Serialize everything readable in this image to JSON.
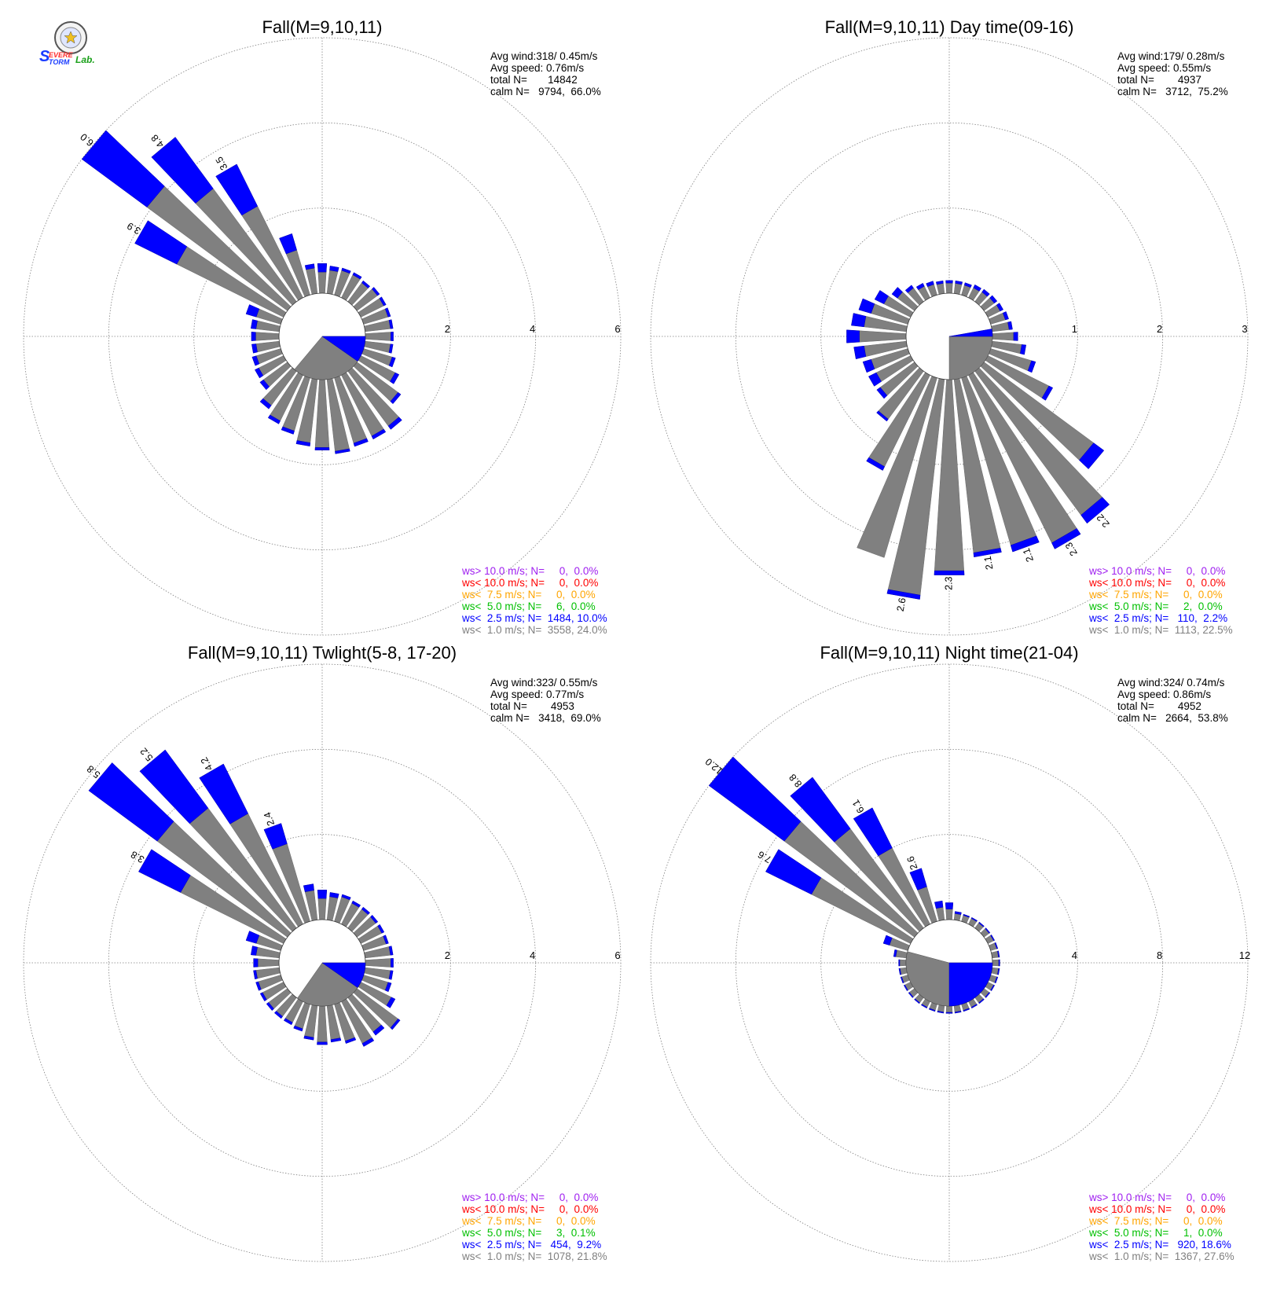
{
  "logo": {
    "text_s": "S",
    "text_evere": "EVERE",
    "text_torm": "TORM",
    "text_lab": "Lab.",
    "colors": {
      "s": "#1a3cff",
      "evere": "#ff2a2a",
      "torm": "#1a3cff",
      "lab": "#1aa01a"
    }
  },
  "colors": {
    "ws_gt10": "#a020f0",
    "ws_lt10": "#ff0000",
    "ws_lt7_5": "#ffa500",
    "ws_lt5": "#00c000",
    "ws_lt2_5": "#0000ff",
    "ws_lt1": "#808080",
    "grid": "#808080"
  },
  "chart_data": [
    {
      "type": "windrose",
      "title": "Fall(M=9,10,11)",
      "ring_labels": [
        "2",
        "4",
        "6"
      ],
      "rmax": 6,
      "info": [
        "Avg wind:318/ 0.45m/s",
        "Avg speed: 0.76m/s",
        "total N=       14842",
        "calm N=   9794,  66.0%"
      ],
      "legend": [
        {
          "key": "ws_gt10",
          "text": "ws> 10.0 m/s; N=     0,  0.0%"
        },
        {
          "key": "ws_lt10",
          "text": "ws< 10.0 m/s; N=     0,  0.0%"
        },
        {
          "key": "ws_lt7_5",
          "text": "ws<  7.5 m/s; N=     0,  0.0%"
        },
        {
          "key": "ws_lt5",
          "text": "ws<  5.0 m/s; N=     6,  0.0%"
        },
        {
          "key": "ws_lt2_5",
          "text": "ws<  2.5 m/s; N=  1484, 10.0%"
        },
        {
          "key": "ws_lt1",
          "text": "ws<  1.0 m/s; N=  3558, 24.0%"
        }
      ],
      "bins_count": 36,
      "calm_wedge": {
        "from_deg": 90,
        "to_deg": 220,
        "blue_from": 90,
        "blue_to": 125
      },
      "petals": [
        {
          "dir": 0,
          "gray": 0.5,
          "blue": 0.2
        },
        {
          "dir": 10,
          "gray": 0.55,
          "blue": 0.1
        },
        {
          "dir": 20,
          "gray": 0.6,
          "blue": 0.06
        },
        {
          "dir": 30,
          "gray": 0.6,
          "blue": 0.06
        },
        {
          "dir": 40,
          "gray": 0.55,
          "blue": 0.06
        },
        {
          "dir": 50,
          "gray": 0.6,
          "blue": 0.06
        },
        {
          "dir": 60,
          "gray": 0.6,
          "blue": 0.06
        },
        {
          "dir": 70,
          "gray": 0.6,
          "blue": 0.06
        },
        {
          "dir": 80,
          "gray": 0.6,
          "blue": 0.06
        },
        {
          "dir": 90,
          "gray": 0.6,
          "blue": 0.06
        },
        {
          "dir": 100,
          "gray": 0.6,
          "blue": 0.06
        },
        {
          "dir": 110,
          "gray": 0.7,
          "blue": 0.08
        },
        {
          "dir": 120,
          "gray": 0.9,
          "blue": 0.1
        },
        {
          "dir": 130,
          "gray": 1.2,
          "blue": 0.08
        },
        {
          "dir": 140,
          "gray": 1.6,
          "blue": 0.1
        },
        {
          "dir": 150,
          "gray": 1.6,
          "blue": 0.08
        },
        {
          "dir": 160,
          "gray": 1.6,
          "blue": 0.08
        },
        {
          "dir": 170,
          "gray": 1.7,
          "blue": 0.06
        },
        {
          "dir": 180,
          "gray": 1.6,
          "blue": 0.06
        },
        {
          "dir": 190,
          "gray": 1.5,
          "blue": 0.08
        },
        {
          "dir": 200,
          "gray": 1.3,
          "blue": 0.08
        },
        {
          "dir": 210,
          "gray": 1.2,
          "blue": 0.08
        },
        {
          "dir": 220,
          "gray": 1.0,
          "blue": 0.1
        },
        {
          "dir": 230,
          "gray": 0.7,
          "blue": 0.1
        },
        {
          "dir": 240,
          "gray": 0.65,
          "blue": 0.1
        },
        {
          "dir": 250,
          "gray": 0.6,
          "blue": 0.1
        },
        {
          "dir": 260,
          "gray": 0.55,
          "blue": 0.1
        },
        {
          "dir": 270,
          "gray": 0.55,
          "blue": 0.1
        },
        {
          "dir": 280,
          "gray": 0.55,
          "blue": 0.12
        },
        {
          "dir": 290,
          "gray": 0.6,
          "blue": 0.25
        },
        {
          "dir": 300,
          "gray": 2.8,
          "blue": 1.1,
          "label": "3.9"
        },
        {
          "dir": 310,
          "gray": 4.1,
          "blue": 1.9,
          "label": "6.0"
        },
        {
          "dir": 320,
          "gray": 3.3,
          "blue": 1.5,
          "label": "4.8"
        },
        {
          "dir": 330,
          "gray": 2.4,
          "blue": 1.1,
          "label": "3.5"
        },
        {
          "dir": 340,
          "gray": 1.1,
          "blue": 0.4
        },
        {
          "dir": 350,
          "gray": 0.6,
          "blue": 0.1
        }
      ]
    },
    {
      "type": "windrose",
      "title": "Fall(M=9,10,11) Day time(09-16)",
      "ring_labels": [
        "1",
        "2",
        "3"
      ],
      "rmax": 3,
      "info": [
        "Avg wind:179/ 0.28m/s",
        "Avg speed: 0.55m/s",
        "total N=        4937",
        "calm N=   3712,  75.2%"
      ],
      "legend": [
        {
          "key": "ws_gt10",
          "text": "ws> 10.0 m/s; N=     0,  0.0%"
        },
        {
          "key": "ws_lt10",
          "text": "ws< 10.0 m/s; N=     0,  0.0%"
        },
        {
          "key": "ws_lt7_5",
          "text": "ws<  7.5 m/s; N=     0,  0.0%"
        },
        {
          "key": "ws_lt5",
          "text": "ws<  5.0 m/s; N=     2,  0.0%"
        },
        {
          "key": "ws_lt2_5",
          "text": "ws<  2.5 m/s; N=   110,  2.2%"
        },
        {
          "key": "ws_lt1",
          "text": "ws<  1.0 m/s; N=  1113, 22.5%"
        }
      ],
      "bins_count": 36,
      "calm_wedge": {
        "from_deg": 90,
        "to_deg": 180,
        "blue_from": 80,
        "blue_to": 90
      },
      "petals": [
        {
          "dir": 0,
          "gray": 0.12,
          "blue": 0.03
        },
        {
          "dir": 10,
          "gray": 0.12,
          "blue": 0.03
        },
        {
          "dir": 20,
          "gray": 0.12,
          "blue": 0.03
        },
        {
          "dir": 30,
          "gray": 0.13,
          "blue": 0.04
        },
        {
          "dir": 40,
          "gray": 0.14,
          "blue": 0.04
        },
        {
          "dir": 50,
          "gray": 0.15,
          "blue": 0.04
        },
        {
          "dir": 60,
          "gray": 0.16,
          "blue": 0.04
        },
        {
          "dir": 70,
          "gray": 0.18,
          "blue": 0.04
        },
        {
          "dir": 80,
          "gray": 0.2,
          "blue": 0.04
        },
        {
          "dir": 90,
          "gray": 0.25,
          "blue": 0.05
        },
        {
          "dir": 100,
          "gray": 0.35,
          "blue": 0.05
        },
        {
          "dir": 110,
          "gray": 0.5,
          "blue": 0.05
        },
        {
          "dir": 120,
          "gray": 0.8,
          "blue": 0.05
        },
        {
          "dir": 130,
          "gray": 1.6,
          "blue": 0.15
        },
        {
          "dir": 140,
          "gray": 2.1,
          "blue": 0.12,
          "label": "2.2"
        },
        {
          "dir": 150,
          "gray": 2.2,
          "blue": 0.08,
          "label": "2.3"
        },
        {
          "dir": 160,
          "gray": 2.05,
          "blue": 0.08,
          "label": "2.1"
        },
        {
          "dir": 170,
          "gray": 2.05,
          "blue": 0.05,
          "label": "2.1"
        },
        {
          "dir": 180,
          "gray": 2.25,
          "blue": 0.05,
          "label": "2.3"
        },
        {
          "dir": 190,
          "gray": 2.55,
          "blue": 0.05,
          "label": "2.6"
        },
        {
          "dir": 200,
          "gray": 2.2,
          "blue": 0.0
        },
        {
          "dir": 210,
          "gray": 1.2,
          "blue": 0.05
        },
        {
          "dir": 220,
          "gray": 0.7,
          "blue": 0.03
        },
        {
          "dir": 230,
          "gray": 0.5,
          "blue": 0.05
        },
        {
          "dir": 240,
          "gray": 0.45,
          "blue": 0.1
        },
        {
          "dir": 250,
          "gray": 0.45,
          "blue": 0.1
        },
        {
          "dir": 260,
          "gray": 0.5,
          "blue": 0.12
        },
        {
          "dir": 270,
          "gray": 0.55,
          "blue": 0.15
        },
        {
          "dir": 280,
          "gray": 0.5,
          "blue": 0.15
        },
        {
          "dir": 290,
          "gray": 0.45,
          "blue": 0.15
        },
        {
          "dir": 300,
          "gray": 0.35,
          "blue": 0.12
        },
        {
          "dir": 310,
          "gray": 0.25,
          "blue": 0.08
        },
        {
          "dir": 320,
          "gray": 0.2,
          "blue": 0.04
        },
        {
          "dir": 330,
          "gray": 0.15,
          "blue": 0.04
        },
        {
          "dir": 340,
          "gray": 0.13,
          "blue": 0.04
        },
        {
          "dir": 350,
          "gray": 0.12,
          "blue": 0.03
        }
      ]
    },
    {
      "type": "windrose",
      "title": "Fall(M=9,10,11) Twlight(5-8, 17-20)",
      "ring_labels": [
        "2",
        "4",
        "6"
      ],
      "rmax": 6,
      "info": [
        "Avg wind:323/ 0.55m/s",
        "Avg speed: 0.77m/s",
        "total N=        4953",
        "calm N=   3418,  69.0%"
      ],
      "legend": [
        {
          "key": "ws_gt10",
          "text": "ws> 10.0 m/s; N=     0,  0.0%"
        },
        {
          "key": "ws_lt10",
          "text": "ws< 10.0 m/s; N=     0,  0.0%"
        },
        {
          "key": "ws_lt7_5",
          "text": "ws<  7.5 m/s; N=     0,  0.0%"
        },
        {
          "key": "ws_lt5",
          "text": "ws<  5.0 m/s; N=     3,  0.1%"
        },
        {
          "key": "ws_lt2_5",
          "text": "ws<  2.5 m/s; N=   454,  9.2%"
        },
        {
          "key": "ws_lt1",
          "text": "ws<  1.0 m/s; N=  1078, 21.8%"
        }
      ],
      "bins_count": 36,
      "calm_wedge": {
        "from_deg": 90,
        "to_deg": 215,
        "blue_from": 90,
        "blue_to": 125
      },
      "petals": [
        {
          "dir": 0,
          "gray": 0.5,
          "blue": 0.2
        },
        {
          "dir": 10,
          "gray": 0.55,
          "blue": 0.1
        },
        {
          "dir": 20,
          "gray": 0.6,
          "blue": 0.06
        },
        {
          "dir": 30,
          "gray": 0.55,
          "blue": 0.06
        },
        {
          "dir": 40,
          "gray": 0.55,
          "blue": 0.06
        },
        {
          "dir": 50,
          "gray": 0.55,
          "blue": 0.06
        },
        {
          "dir": 60,
          "gray": 0.55,
          "blue": 0.06
        },
        {
          "dir": 70,
          "gray": 0.55,
          "blue": 0.06
        },
        {
          "dir": 80,
          "gray": 0.6,
          "blue": 0.06
        },
        {
          "dir": 90,
          "gray": 0.6,
          "blue": 0.06
        },
        {
          "dir": 100,
          "gray": 0.6,
          "blue": 0.06
        },
        {
          "dir": 110,
          "gray": 0.6,
          "blue": 0.08
        },
        {
          "dir": 120,
          "gray": 0.8,
          "blue": 0.1
        },
        {
          "dir": 130,
          "gray": 1.2,
          "blue": 0.06
        },
        {
          "dir": 140,
          "gray": 1.0,
          "blue": 0.1
        },
        {
          "dir": 150,
          "gray": 1.1,
          "blue": 0.08
        },
        {
          "dir": 160,
          "gray": 0.9,
          "blue": 0.06
        },
        {
          "dir": 170,
          "gray": 0.8,
          "blue": 0.06
        },
        {
          "dir": 180,
          "gray": 0.85,
          "blue": 0.06
        },
        {
          "dir": 190,
          "gray": 0.75,
          "blue": 0.06
        },
        {
          "dir": 200,
          "gray": 0.6,
          "blue": 0.06
        },
        {
          "dir": 210,
          "gray": 0.55,
          "blue": 0.06
        },
        {
          "dir": 220,
          "gray": 0.55,
          "blue": 0.06
        },
        {
          "dir": 230,
          "gray": 0.55,
          "blue": 0.06
        },
        {
          "dir": 240,
          "gray": 0.55,
          "blue": 0.06
        },
        {
          "dir": 250,
          "gray": 0.55,
          "blue": 0.06
        },
        {
          "dir": 260,
          "gray": 0.55,
          "blue": 0.06
        },
        {
          "dir": 270,
          "gray": 0.5,
          "blue": 0.1
        },
        {
          "dir": 280,
          "gray": 0.55,
          "blue": 0.12
        },
        {
          "dir": 290,
          "gray": 0.6,
          "blue": 0.25
        },
        {
          "dir": 300,
          "gray": 2.7,
          "blue": 1.1,
          "label": "3.8"
        },
        {
          "dir": 310,
          "gray": 3.8,
          "blue": 2.0,
          "label": "5.8"
        },
        {
          "dir": 320,
          "gray": 3.5,
          "blue": 1.7,
          "label": "5.2"
        },
        {
          "dir": 330,
          "gray": 2.9,
          "blue": 1.3,
          "label": "4.2"
        },
        {
          "dir": 340,
          "gray": 1.9,
          "blue": 0.5,
          "label": "2.4"
        },
        {
          "dir": 350,
          "gray": 0.7,
          "blue": 0.15
        }
      ]
    },
    {
      "type": "windrose",
      "title": "Fall(M=9,10,11) Night time(21-04)",
      "ring_labels": [
        "4",
        "8",
        "12"
      ],
      "rmax": 12,
      "info": [
        "Avg wind:324/ 0.74m/s",
        "Avg speed: 0.86m/s",
        "total N=        4952",
        "calm N=   2664,  53.8%"
      ],
      "legend": [
        {
          "key": "ws_gt10",
          "text": "ws> 10.0 m/s; N=     0,  0.0%"
        },
        {
          "key": "ws_lt10",
          "text": "ws< 10.0 m/s; N=     0,  0.0%"
        },
        {
          "key": "ws_lt7_5",
          "text": "ws<  7.5 m/s; N=     0,  0.0%"
        },
        {
          "key": "ws_lt5",
          "text": "ws<  5.0 m/s; N=     1,  0.0%"
        },
        {
          "key": "ws_lt2_5",
          "text": "ws<  2.5 m/s; N=   920, 18.6%"
        },
        {
          "key": "ws_lt1",
          "text": "ws<  1.0 m/s; N=  1367, 27.6%"
        }
      ],
      "bins_count": 36,
      "calm_wedge": {
        "from_deg": 90,
        "to_deg": 285,
        "blue_from": 90,
        "blue_to": 180
      },
      "petals": [
        {
          "dir": 0,
          "gray": 0.5,
          "blue": 0.3
        },
        {
          "dir": 10,
          "gray": 0.3,
          "blue": 0.1
        },
        {
          "dir": 20,
          "gray": 0.3,
          "blue": 0.05
        },
        {
          "dir": 30,
          "gray": 0.3,
          "blue": 0.05
        },
        {
          "dir": 40,
          "gray": 0.3,
          "blue": 0.05
        },
        {
          "dir": 50,
          "gray": 0.3,
          "blue": 0.05
        },
        {
          "dir": 60,
          "gray": 0.3,
          "blue": 0.05
        },
        {
          "dir": 70,
          "gray": 0.3,
          "blue": 0.05
        },
        {
          "dir": 80,
          "gray": 0.3,
          "blue": 0.05
        },
        {
          "dir": 90,
          "gray": 0.3,
          "blue": 0.05
        },
        {
          "dir": 100,
          "gray": 0.3,
          "blue": 0.05
        },
        {
          "dir": 110,
          "gray": 0.3,
          "blue": 0.05
        },
        {
          "dir": 120,
          "gray": 0.3,
          "blue": 0.05
        },
        {
          "dir": 130,
          "gray": 0.3,
          "blue": 0.05
        },
        {
          "dir": 140,
          "gray": 0.3,
          "blue": 0.05
        },
        {
          "dir": 150,
          "gray": 0.3,
          "blue": 0.05
        },
        {
          "dir": 160,
          "gray": 0.3,
          "blue": 0.05
        },
        {
          "dir": 170,
          "gray": 0.3,
          "blue": 0.05
        },
        {
          "dir": 180,
          "gray": 0.3,
          "blue": 0.05
        },
        {
          "dir": 190,
          "gray": 0.3,
          "blue": 0.05
        },
        {
          "dir": 200,
          "gray": 0.3,
          "blue": 0.05
        },
        {
          "dir": 210,
          "gray": 0.3,
          "blue": 0.05
        },
        {
          "dir": 220,
          "gray": 0.3,
          "blue": 0.05
        },
        {
          "dir": 230,
          "gray": 0.3,
          "blue": 0.05
        },
        {
          "dir": 240,
          "gray": 0.3,
          "blue": 0.05
        },
        {
          "dir": 250,
          "gray": 0.3,
          "blue": 0.05
        },
        {
          "dir": 260,
          "gray": 0.3,
          "blue": 0.05
        },
        {
          "dir": 270,
          "gray": 0.3,
          "blue": 0.05
        },
        {
          "dir": 280,
          "gray": 0.5,
          "blue": 0.1
        },
        {
          "dir": 290,
          "gray": 0.9,
          "blue": 0.3
        },
        {
          "dir": 300,
          "gray": 5.2,
          "blue": 2.4,
          "label": "7.6"
        },
        {
          "dir": 310,
          "gray": 7.6,
          "blue": 4.4,
          "label": "12.0"
        },
        {
          "dir": 320,
          "gray": 5.8,
          "blue": 3.0,
          "label": "8.8"
        },
        {
          "dir": 330,
          "gray": 4.0,
          "blue": 2.1,
          "label": "6.1"
        },
        {
          "dir": 340,
          "gray": 1.7,
          "blue": 0.9,
          "label": "2.6"
        },
        {
          "dir": 350,
          "gray": 0.6,
          "blue": 0.3
        }
      ]
    }
  ]
}
